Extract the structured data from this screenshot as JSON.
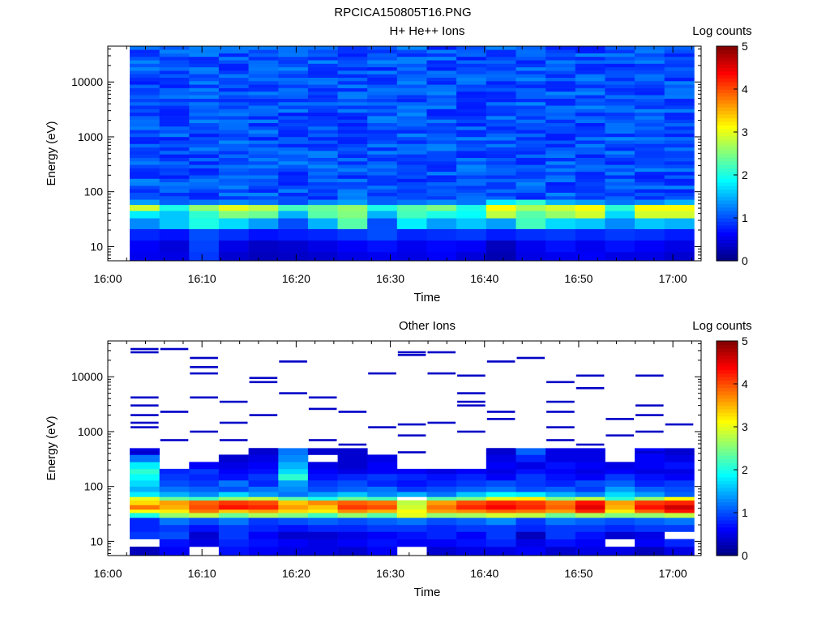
{
  "page_title": "RPCICA150805T16.PNG",
  "chart_data": [
    {
      "type": "heatmap",
      "title": "H+ He++ Ions",
      "xlabel": "Time",
      "ylabel": "Energy (eV)",
      "x_ticks": [
        "16:00",
        "16:10",
        "16:20",
        "16:30",
        "16:40",
        "16:50",
        "17:00"
      ],
      "x_range": [
        "16:00",
        "17:03"
      ],
      "y_scale": "log",
      "y_ticks": [
        "10",
        "100",
        "1000",
        "10000"
      ],
      "y_range": [
        5.5,
        45000
      ],
      "colorbar": {
        "label": "Log counts",
        "ticks": [
          "0",
          "1",
          "2",
          "3",
          "4",
          "5"
        ],
        "range": [
          0,
          5
        ],
        "colormap": "jet"
      },
      "time_bins": [
        "16:02",
        "16:05",
        "16:08",
        "16:12",
        "16:15",
        "16:18",
        "16:22",
        "16:25",
        "16:28",
        "16:32",
        "16:35",
        "16:38",
        "16:42",
        "16:45",
        "16:48",
        "16:52",
        "16:55",
        "16:58",
        "17:02"
      ],
      "bands": [
        {
          "from": 5.5,
          "to": 8,
          "values": [
            0.55,
            0.5,
            0.9,
            0.4,
            0.3,
            0.35,
            0.4,
            0.5,
            0.55,
            0.5,
            0.6,
            0.45,
            0.25,
            0.5,
            0.55,
            0.6,
            0.5,
            0.5,
            0.4
          ]
        },
        {
          "from": 8,
          "to": 13,
          "values": [
            0.6,
            0.45,
            0.95,
            0.5,
            0.35,
            0.4,
            0.5,
            0.6,
            0.7,
            0.55,
            0.65,
            0.6,
            0.3,
            0.55,
            0.7,
            0.55,
            0.7,
            0.6,
            0.5
          ]
        },
        {
          "from": 13,
          "to": 21,
          "values": [
            0.8,
            0.7,
            1.0,
            0.85,
            0.7,
            0.75,
            0.8,
            0.9,
            1.0,
            0.8,
            0.85,
            0.9,
            0.75,
            0.85,
            0.9,
            0.8,
            0.9,
            0.85,
            0.75
          ]
        },
        {
          "from": 21,
          "to": 33,
          "values": [
            1.3,
            1.6,
            2.0,
            1.7,
            1.4,
            1.0,
            1.5,
            2.3,
            1.0,
            1.8,
            1.4,
            1.6,
            1.4,
            2.2,
            1.7,
            1.6,
            1.3,
            1.6,
            1.5
          ]
        },
        {
          "from": 33,
          "to": 45,
          "values": [
            1.8,
            1.6,
            2.1,
            2.5,
            2.4,
            1.5,
            2.3,
            2.5,
            1.5,
            2.2,
            2.0,
            1.9,
            2.8,
            2.3,
            2.6,
            2.9,
            1.7,
            2.9,
            2.9
          ]
        },
        {
          "from": 45,
          "to": 58,
          "values": [
            2.9,
            2.0,
            2.6,
            3.0,
            2.8,
            2.2,
            2.4,
            2.6,
            2.0,
            2.3,
            2.5,
            2.0,
            3.1,
            2.7,
            2.9,
            3.1,
            2.1,
            3.1,
            3.1
          ]
        },
        {
          "from": 58,
          "to": 72,
          "values": [
            1.4,
            1.1,
            1.2,
            1.3,
            1.2,
            1.0,
            1.3,
            1.4,
            1.1,
            1.2,
            1.3,
            1.2,
            1.8,
            2.1,
            1.5,
            1.4,
            1.2,
            1.3,
            1.5
          ]
        }
      ]
    },
    {
      "type": "heatmap",
      "title": "Other Ions",
      "xlabel": "Time",
      "ylabel": "Energy (eV)",
      "x_ticks": [
        "16:00",
        "16:10",
        "16:20",
        "16:30",
        "16:40",
        "16:50",
        "17:00"
      ],
      "x_range": [
        "16:00",
        "17:03"
      ],
      "y_scale": "log",
      "y_ticks": [
        "10",
        "100",
        "1000",
        "10000"
      ],
      "y_range": [
        5.5,
        45000
      ],
      "colorbar": {
        "label": "Log counts",
        "ticks": [
          "0",
          "1",
          "2",
          "3",
          "4",
          "5"
        ],
        "range": [
          0,
          5
        ],
        "colormap": "jet"
      },
      "bands": [
        {
          "from": 5.5,
          "to": 8,
          "values": [
            0.3,
            0.6,
            null,
            0.7,
            0.6,
            0.5,
            0.5,
            0.4,
            0.6,
            null,
            0.4,
            0.5,
            0.5,
            0.6,
            0.4,
            0.5,
            0.5,
            0.3,
            0.5
          ]
        },
        {
          "from": 8,
          "to": 11,
          "values": [
            null,
            0.7,
            0.5,
            0.8,
            0.7,
            0.6,
            0.5,
            0.6,
            0.7,
            0.6,
            0.6,
            0.7,
            0.8,
            0.5,
            0.7,
            0.6,
            null,
            0.6,
            0.8
          ]
        },
        {
          "from": 11,
          "to": 15,
          "values": [
            0.9,
            1.0,
            0.4,
            0.9,
            0.6,
            0.4,
            0.4,
            0.5,
            0.6,
            0.7,
            0.8,
            0.6,
            0.9,
            0.3,
            0.9,
            0.7,
            0.4,
            0.5,
            null
          ]
        },
        {
          "from": 15,
          "to": 20,
          "values": [
            0.8,
            0.9,
            0.7,
            0.9,
            0.8,
            0.7,
            0.8,
            0.8,
            0.9,
            0.9,
            0.8,
            0.9,
            0.9,
            0.8,
            0.9,
            0.9,
            0.8,
            0.9,
            0.9
          ]
        },
        {
          "from": 20,
          "to": 27,
          "values": [
            0.8,
            1.2,
            1.0,
            1.2,
            0.9,
            1.0,
            1.1,
            1.0,
            1.1,
            1.2,
            1.0,
            1.1,
            1.3,
            0.9,
            1.2,
            1.1,
            1.0,
            1.1,
            1.2
          ]
        },
        {
          "from": 27,
          "to": 33,
          "values": [
            2.0,
            2.6,
            2.8,
            2.4,
            2.7,
            2.5,
            2.2,
            2.6,
            2.3,
            3.0,
            2.6,
            2.7,
            2.9,
            2.8,
            2.4,
            2.7,
            2.5,
            2.6,
            2.8
          ]
        },
        {
          "from": 33,
          "to": 38,
          "values": [
            3.1,
            3.2,
            3.8,
            3.4,
            3.6,
            3.3,
            3.2,
            3.7,
            3.5,
            3.1,
            3.6,
            3.7,
            3.9,
            3.8,
            3.6,
            4.2,
            3.2,
            3.9,
            4.3
          ]
        },
        {
          "from": 38,
          "to": 46,
          "values": [
            3.8,
            3.5,
            4.0,
            4.3,
            4.2,
            3.6,
            3.4,
            4.1,
            4.0,
            2.9,
            3.8,
            4.2,
            4.4,
            4.2,
            3.9,
            4.5,
            3.5,
            4.3,
            4.6
          ]
        },
        {
          "from": 46,
          "to": 56,
          "values": [
            3.3,
            3.6,
            3.9,
            4.1,
            4.0,
            3.4,
            3.7,
            3.9,
            3.8,
            2.8,
            3.6,
            4.0,
            4.2,
            4.1,
            3.8,
            4.3,
            3.6,
            4.1,
            4.2
          ]
        },
        {
          "from": 56,
          "to": 65,
          "values": [
            3.0,
            2.4,
            2.2,
            2.6,
            2.8,
            2.3,
            2.0,
            2.4,
            2.2,
            null,
            2.3,
            2.5,
            3.0,
            3.2,
            2.5,
            2.8,
            2.1,
            2.6,
            3.1
          ]
        },
        {
          "from": 65,
          "to": 80,
          "values": [
            1.8,
            1.5,
            1.3,
            1.7,
            1.4,
            1.2,
            1.4,
            1.6,
            1.3,
            1.5,
            1.2,
            1.6,
            1.9,
            1.8,
            1.5,
            1.3,
            1.7,
            1.4,
            1.1
          ]
        },
        {
          "from": 80,
          "to": 100,
          "values": [
            1.5,
            1.2,
            1.1,
            1.0,
            1.2,
            1.3,
            1.0,
            1.1,
            1.2,
            0.9,
            1.0,
            1.1,
            1.2,
            1.0,
            1.1,
            0.9,
            1.4,
            1.1,
            1.0
          ]
        },
        {
          "from": 100,
          "to": 130,
          "values": [
            1.7,
            1.0,
            0.9,
            1.2,
            0.8,
            1.4,
            0.9,
            1.0,
            0.8,
            0.7,
            0.8,
            0.9,
            1.0,
            0.9,
            0.8,
            1.0,
            1.1,
            0.8,
            0.9
          ]
        },
        {
          "from": 130,
          "to": 170,
          "values": [
            1.9,
            0.9,
            0.8,
            0.7,
            0.9,
            2.1,
            0.7,
            0.8,
            0.9,
            0.8,
            0.7,
            0.8,
            0.6,
            0.9,
            0.7,
            0.6,
            0.9,
            0.7,
            0.6
          ]
        },
        {
          "from": 170,
          "to": 210,
          "values": [
            2.1,
            0.8,
            0.9,
            0.6,
            0.7,
            1.7,
            0.6,
            0.5,
            0.6,
            0.6,
            0.5,
            0.6,
            0.5,
            0.7,
            0.6,
            0.5,
            0.6,
            0.5,
            0.5
          ]
        },
        {
          "from": 210,
          "to": 280,
          "values": [
            1.8,
            null,
            0.6,
            0.5,
            0.6,
            1.5,
            0.5,
            0.4,
            0.6,
            null,
            null,
            null,
            0.6,
            0.5,
            0.7,
            0.6,
            0.5,
            0.6,
            0.7
          ]
        },
        {
          "from": 280,
          "to": 380,
          "values": [
            1.2,
            null,
            null,
            0.4,
            0.5,
            1.3,
            null,
            0.4,
            0.5,
            null,
            null,
            null,
            0.5,
            0.8,
            0.5,
            0.5,
            null,
            0.6,
            0.5
          ]
        },
        {
          "from": 380,
          "to": 500,
          "values": [
            0.5,
            null,
            null,
            null,
            0.4,
            1.2,
            0.4,
            0.4,
            null,
            null,
            null,
            null,
            0.4,
            1.1,
            0.5,
            0.5,
            null,
            0.6,
            0.4
          ]
        }
      ],
      "sparse_lines": [
        {
          "energy": 32000,
          "bins": [
            0,
            1
          ]
        },
        {
          "energy": 28000,
          "bins": [
            0,
            9,
            10
          ]
        },
        {
          "energy": 25000,
          "bins": [
            9
          ]
        },
        {
          "energy": 22000,
          "bins": [
            2,
            13
          ]
        },
        {
          "energy": 19000,
          "bins": [
            5,
            12
          ]
        },
        {
          "energy": 15000,
          "bins": [
            2
          ]
        },
        {
          "energy": 11500,
          "bins": [
            2,
            8,
            10
          ]
        },
        {
          "energy": 10500,
          "bins": [
            11,
            15,
            17
          ]
        },
        {
          "energy": 9500,
          "bins": [
            4
          ]
        },
        {
          "energy": 8000,
          "bins": [
            4,
            14
          ]
        },
        {
          "energy": 6200,
          "bins": [
            15
          ]
        },
        {
          "energy": 5000,
          "bins": [
            5,
            11
          ]
        },
        {
          "energy": 4200,
          "bins": [
            0,
            2,
            6
          ]
        },
        {
          "energy": 3500,
          "bins": [
            3,
            11,
            14
          ]
        },
        {
          "energy": 3000,
          "bins": [
            0,
            11,
            17
          ]
        },
        {
          "energy": 2600,
          "bins": [
            6
          ]
        },
        {
          "energy": 2300,
          "bins": [
            1,
            7,
            12,
            14
          ]
        },
        {
          "energy": 2000,
          "bins": [
            0,
            4,
            17
          ]
        },
        {
          "energy": 1700,
          "bins": [
            12,
            16
          ]
        },
        {
          "energy": 1450,
          "bins": [
            0,
            3,
            10
          ]
        },
        {
          "energy": 1350,
          "bins": [
            9,
            18
          ]
        },
        {
          "energy": 1200,
          "bins": [
            0,
            8,
            14
          ]
        },
        {
          "energy": 1000,
          "bins": [
            2,
            11,
            17
          ]
        },
        {
          "energy": 850,
          "bins": [
            9,
            16
          ]
        },
        {
          "energy": 700,
          "bins": [
            1,
            3,
            6,
            14
          ]
        },
        {
          "energy": 580,
          "bins": [
            7,
            15
          ]
        },
        {
          "energy": 480,
          "bins": [
            4,
            12
          ]
        },
        {
          "energy": 420,
          "bins": [
            0,
            9,
            17
          ]
        }
      ]
    }
  ]
}
